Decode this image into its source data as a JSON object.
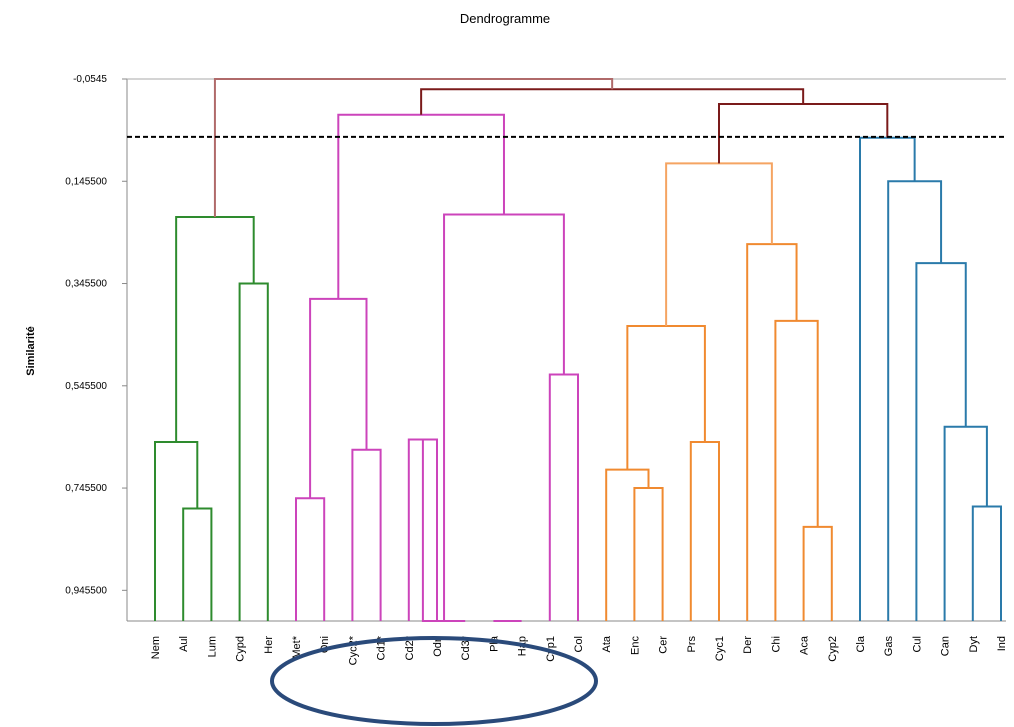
{
  "chart_data": {
    "type": "dendrogram",
    "title": "Dendrogramme",
    "ylabel": "Similarité",
    "xlabel": "",
    "ylim": [
      -0.0545,
      1.0055
    ],
    "y_ticks": [
      {
        "value": -0.0545,
        "label": "-0,0545"
      },
      {
        "value": 0.1455,
        "label": "0,145500"
      },
      {
        "value": 0.3455,
        "label": "0,345500"
      },
      {
        "value": 0.5455,
        "label": "0,545500"
      },
      {
        "value": 0.7455,
        "label": "0,745500"
      },
      {
        "value": 0.9455,
        "label": "0,945500"
      }
    ],
    "cut_line": -0.0,
    "leaves": [
      "Nem",
      "Aul",
      "Lum",
      "Cypd",
      "Her",
      "Met*",
      "Oni",
      "Cyc2*",
      "Cd1*",
      "Cd2*",
      "Odn",
      "Cd3*",
      "Pla",
      "Hap",
      "Cyp1",
      "Col",
      "Ata",
      "Enc",
      "Cer",
      "Prs",
      "Cyc1",
      "Der",
      "Chi",
      "Aca",
      "Cyp2",
      "Cla",
      "Gas",
      "Cul",
      "Can",
      "Dyt",
      "Ind"
    ],
    "merges": [
      {
        "a": {
          "leaf": 1
        },
        "b": {
          "leaf": 2
        },
        "height": 0.7855,
        "color": "#2e8b2e"
      },
      {
        "a": {
          "leaf": 0
        },
        "b": {
          "merge": 0
        },
        "height": 0.6555,
        "color": "#2e8b2e"
      },
      {
        "a": {
          "leaf": 3
        },
        "b": {
          "leaf": 4
        },
        "height": 0.3455,
        "color": "#2e8b2e"
      },
      {
        "a": {
          "merge": 1
        },
        "b": {
          "merge": 2
        },
        "height": 0.2155,
        "color": "#2e8b2e"
      },
      {
        "a": {
          "leaf": 5
        },
        "b": {
          "leaf": 6
        },
        "height": 0.7655,
        "color": "#cc44bb"
      },
      {
        "a": {
          "leaf": 7
        },
        "b": {
          "leaf": 8
        },
        "height": 0.6705,
        "color": "#cc44bb"
      },
      {
        "a": {
          "merge": 4
        },
        "b": {
          "merge": 5
        },
        "height": 0.3755,
        "color": "#cc44bb"
      },
      {
        "a": {
          "leaf": 9
        },
        "b": {
          "leaf": 10
        },
        "height": 0.6505,
        "color": "#cc44bb"
      },
      {
        "a": {
          "merge": 7
        },
        "b": {
          "leaf": 11
        },
        "height": 1.0055,
        "color": "#cc44bb"
      },
      {
        "a": {
          "leaf": 12
        },
        "b": {
          "leaf": 13
        },
        "height": 1.0055,
        "color": "#cc44bb"
      },
      {
        "a": {
          "leaf": 14
        },
        "b": {
          "leaf": 15
        },
        "height": 0.5235,
        "color": "#cc44bb"
      },
      {
        "a": {
          "merge": 8
        },
        "b": {
          "merge": 10
        },
        "height": 0.2105,
        "color": "#cc44bb"
      },
      {
        "a": {
          "merge": 6
        },
        "b": {
          "merge": 11
        },
        "height": 0.0155,
        "color": "#cc44bb"
      },
      {
        "a": {
          "leaf": 17
        },
        "b": {
          "leaf": 18
        },
        "height": 0.7455,
        "color": "#f08a30"
      },
      {
        "a": {
          "leaf": 16
        },
        "b": {
          "merge": 13
        },
        "height": 0.7095,
        "color": "#f08a30"
      },
      {
        "a": {
          "leaf": 19
        },
        "b": {
          "leaf": 20
        },
        "height": 0.6555,
        "color": "#f08a30"
      },
      {
        "a": {
          "merge": 14
        },
        "b": {
          "merge": 15
        },
        "height": 0.4285,
        "color": "#f08a30"
      },
      {
        "a": {
          "leaf": 23
        },
        "b": {
          "leaf": 24
        },
        "height": 0.8215,
        "color": "#f08a30"
      },
      {
        "a": {
          "leaf": 22
        },
        "b": {
          "merge": 17
        },
        "height": 0.4185,
        "color": "#f08a30"
      },
      {
        "a": {
          "leaf": 21
        },
        "b": {
          "merge": 18
        },
        "height": 0.2685,
        "color": "#f08a30"
      },
      {
        "a": {
          "merge": 16
        },
        "b": {
          "merge": 19
        },
        "height": 0.1105,
        "color": "#f5a462"
      },
      {
        "a": {
          "leaf": 29
        },
        "b": {
          "leaf": 30
        },
        "height": 0.7815,
        "color": "#2a7aaa"
      },
      {
        "a": {
          "leaf": 28
        },
        "b": {
          "merge": 21
        },
        "height": 0.6255,
        "color": "#2a7aaa"
      },
      {
        "a": {
          "leaf": 27
        },
        "b": {
          "merge": 22
        },
        "height": 0.3055,
        "color": "#2a7aaa"
      },
      {
        "a": {
          "leaf": 26
        },
        "b": {
          "merge": 23
        },
        "height": 0.1455,
        "color": "#2a7aaa"
      },
      {
        "a": {
          "leaf": 25
        },
        "b": {
          "merge": 24
        },
        "height": 0.0605,
        "color": "#2a7aaa"
      },
      {
        "a": {
          "merge": 20
        },
        "b": {
          "merge": 25
        },
        "height": -0.0055,
        "color": "#7a1a1a"
      },
      {
        "a": {
          "merge": 12
        },
        "b": {
          "merge": 26
        },
        "height": -0.0345,
        "color": "#7a1a1a"
      },
      {
        "a": {
          "merge": 3
        },
        "b": {
          "merge": 27
        },
        "height": -0.0545,
        "color": "#b06a6a"
      }
    ],
    "grid": false,
    "legend": "none"
  }
}
